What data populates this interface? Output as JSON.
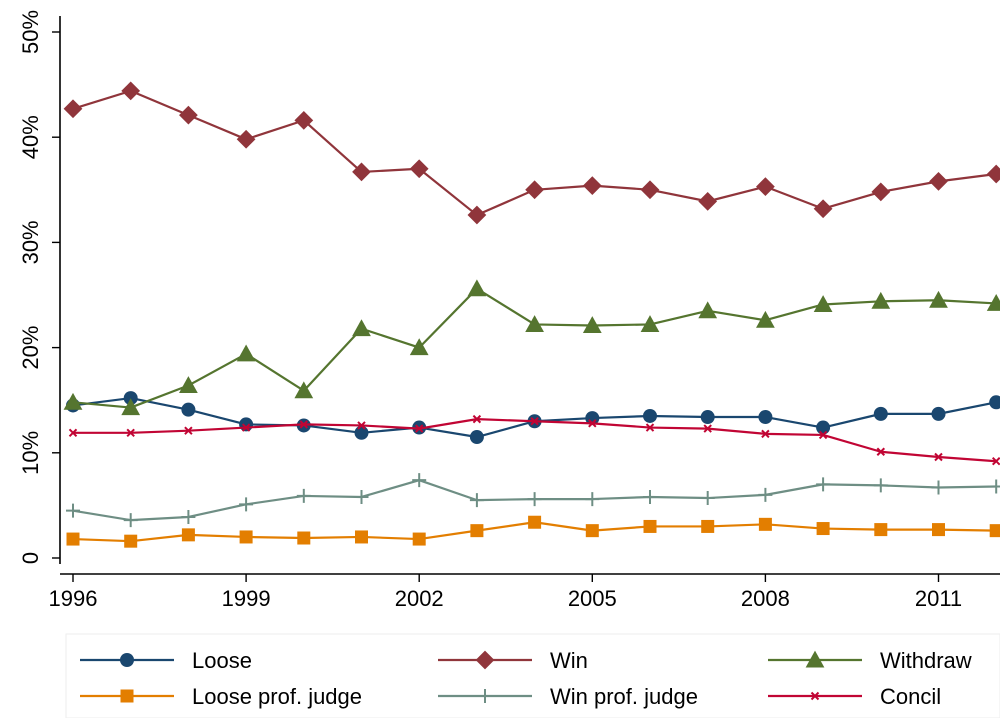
{
  "chart_data": {
    "type": "line",
    "title": "",
    "xlabel": "",
    "ylabel": "",
    "x": [
      1996,
      1997,
      1998,
      1999,
      2000,
      2001,
      2002,
      2003,
      2004,
      2005,
      2006,
      2007,
      2008,
      2009,
      2010,
      2011,
      2012
    ],
    "xticks": [
      1996,
      1999,
      2002,
      2005,
      2008,
      2011
    ],
    "xtick_labels": [
      "1996",
      "1999",
      "2002",
      "2005",
      "2008",
      "2011"
    ],
    "xlim": [
      1996,
      2012
    ],
    "ylim": [
      0,
      50
    ],
    "yticks": [
      0,
      10,
      20,
      30,
      40,
      50
    ],
    "ytick_labels": [
      "0",
      "10%",
      "20%",
      "30%",
      "40%",
      "50%"
    ],
    "grid": false,
    "legend_position": "bottom",
    "series": [
      {
        "name": "Loose",
        "color": "#1a476f",
        "marker": "circle",
        "values": [
          14.5,
          15.2,
          14.1,
          12.7,
          12.6,
          11.9,
          12.4,
          11.5,
          13.0,
          13.3,
          13.5,
          13.4,
          13.4,
          12.4,
          13.7,
          13.7,
          14.8
        ]
      },
      {
        "name": "Win",
        "color": "#90353b",
        "marker": "diamond",
        "values": [
          42.7,
          44.4,
          42.1,
          39.8,
          41.6,
          36.7,
          37.0,
          32.6,
          35.0,
          35.4,
          35.0,
          33.9,
          35.3,
          33.2,
          34.8,
          35.8,
          36.5
        ]
      },
      {
        "name": "Withdraw",
        "color": "#55752f",
        "marker": "triangle",
        "values": [
          14.8,
          14.3,
          16.4,
          19.4,
          15.9,
          21.8,
          20.0,
          25.6,
          22.2,
          22.1,
          22.2,
          23.5,
          22.6,
          24.1,
          24.4,
          24.5,
          24.2
        ]
      },
      {
        "name": "Loose prof. judge",
        "color": "#e37e00",
        "marker": "square",
        "values": [
          1.8,
          1.6,
          2.2,
          2.0,
          1.9,
          2.0,
          1.8,
          2.6,
          3.4,
          2.6,
          3.0,
          3.0,
          3.2,
          2.8,
          2.7,
          2.7,
          2.6
        ]
      },
      {
        "name": "Win prof. judge",
        "color": "#6e8e84",
        "marker": "plus",
        "values": [
          4.5,
          3.6,
          3.9,
          5.1,
          5.9,
          5.8,
          7.4,
          5.5,
          5.6,
          5.6,
          5.8,
          5.7,
          6.0,
          7.0,
          6.9,
          6.7,
          6.8
        ]
      },
      {
        "name": "Concil",
        "color": "#c10534",
        "marker": "x",
        "values": [
          11.9,
          11.9,
          12.1,
          12.4,
          12.7,
          12.6,
          12.3,
          13.2,
          13.0,
          12.8,
          12.4,
          12.3,
          11.8,
          11.7,
          10.1,
          9.6,
          9.2
        ]
      }
    ]
  }
}
